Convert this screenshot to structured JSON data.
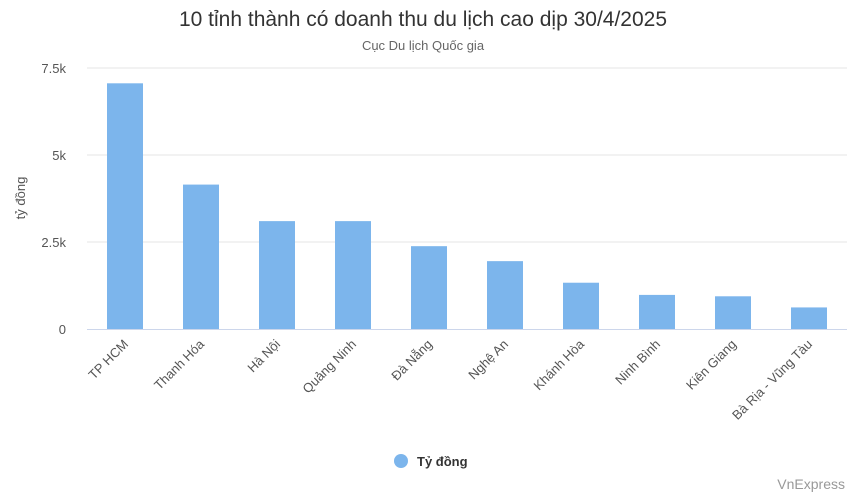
{
  "chart_data": {
    "type": "bar",
    "title": "10 tỉnh thành có doanh thu du lịch cao dịp 30/4/2025",
    "subtitle": "Cục Du lịch Quốc gia",
    "xlabel": "",
    "ylabel": "tỷ đồng",
    "categories": [
      "TP HCM",
      "Thanh Hóa",
      "Hà Nội",
      "Quảng Ninh",
      "Đà Nẵng",
      "Nghệ An",
      "Khánh Hòa",
      "Ninh Bình",
      "Kiên Giang",
      "Bà Rịa - Vũng Tàu"
    ],
    "series": [
      {
        "name": "Tỷ đồng",
        "color": "#7cb5ec",
        "values": [
          7060,
          4150,
          3100,
          3100,
          2380,
          1950,
          1330,
          980,
          940,
          620
        ]
      }
    ],
    "ylim": [
      0,
      7500
    ],
    "yticks": [
      0,
      2500,
      5000,
      7500
    ],
    "ytick_labels": [
      "0",
      "2.5k",
      "5k",
      "7.5k"
    ],
    "grid": true,
    "legend_position": "bottom-center",
    "credit": "VnExpress"
  }
}
